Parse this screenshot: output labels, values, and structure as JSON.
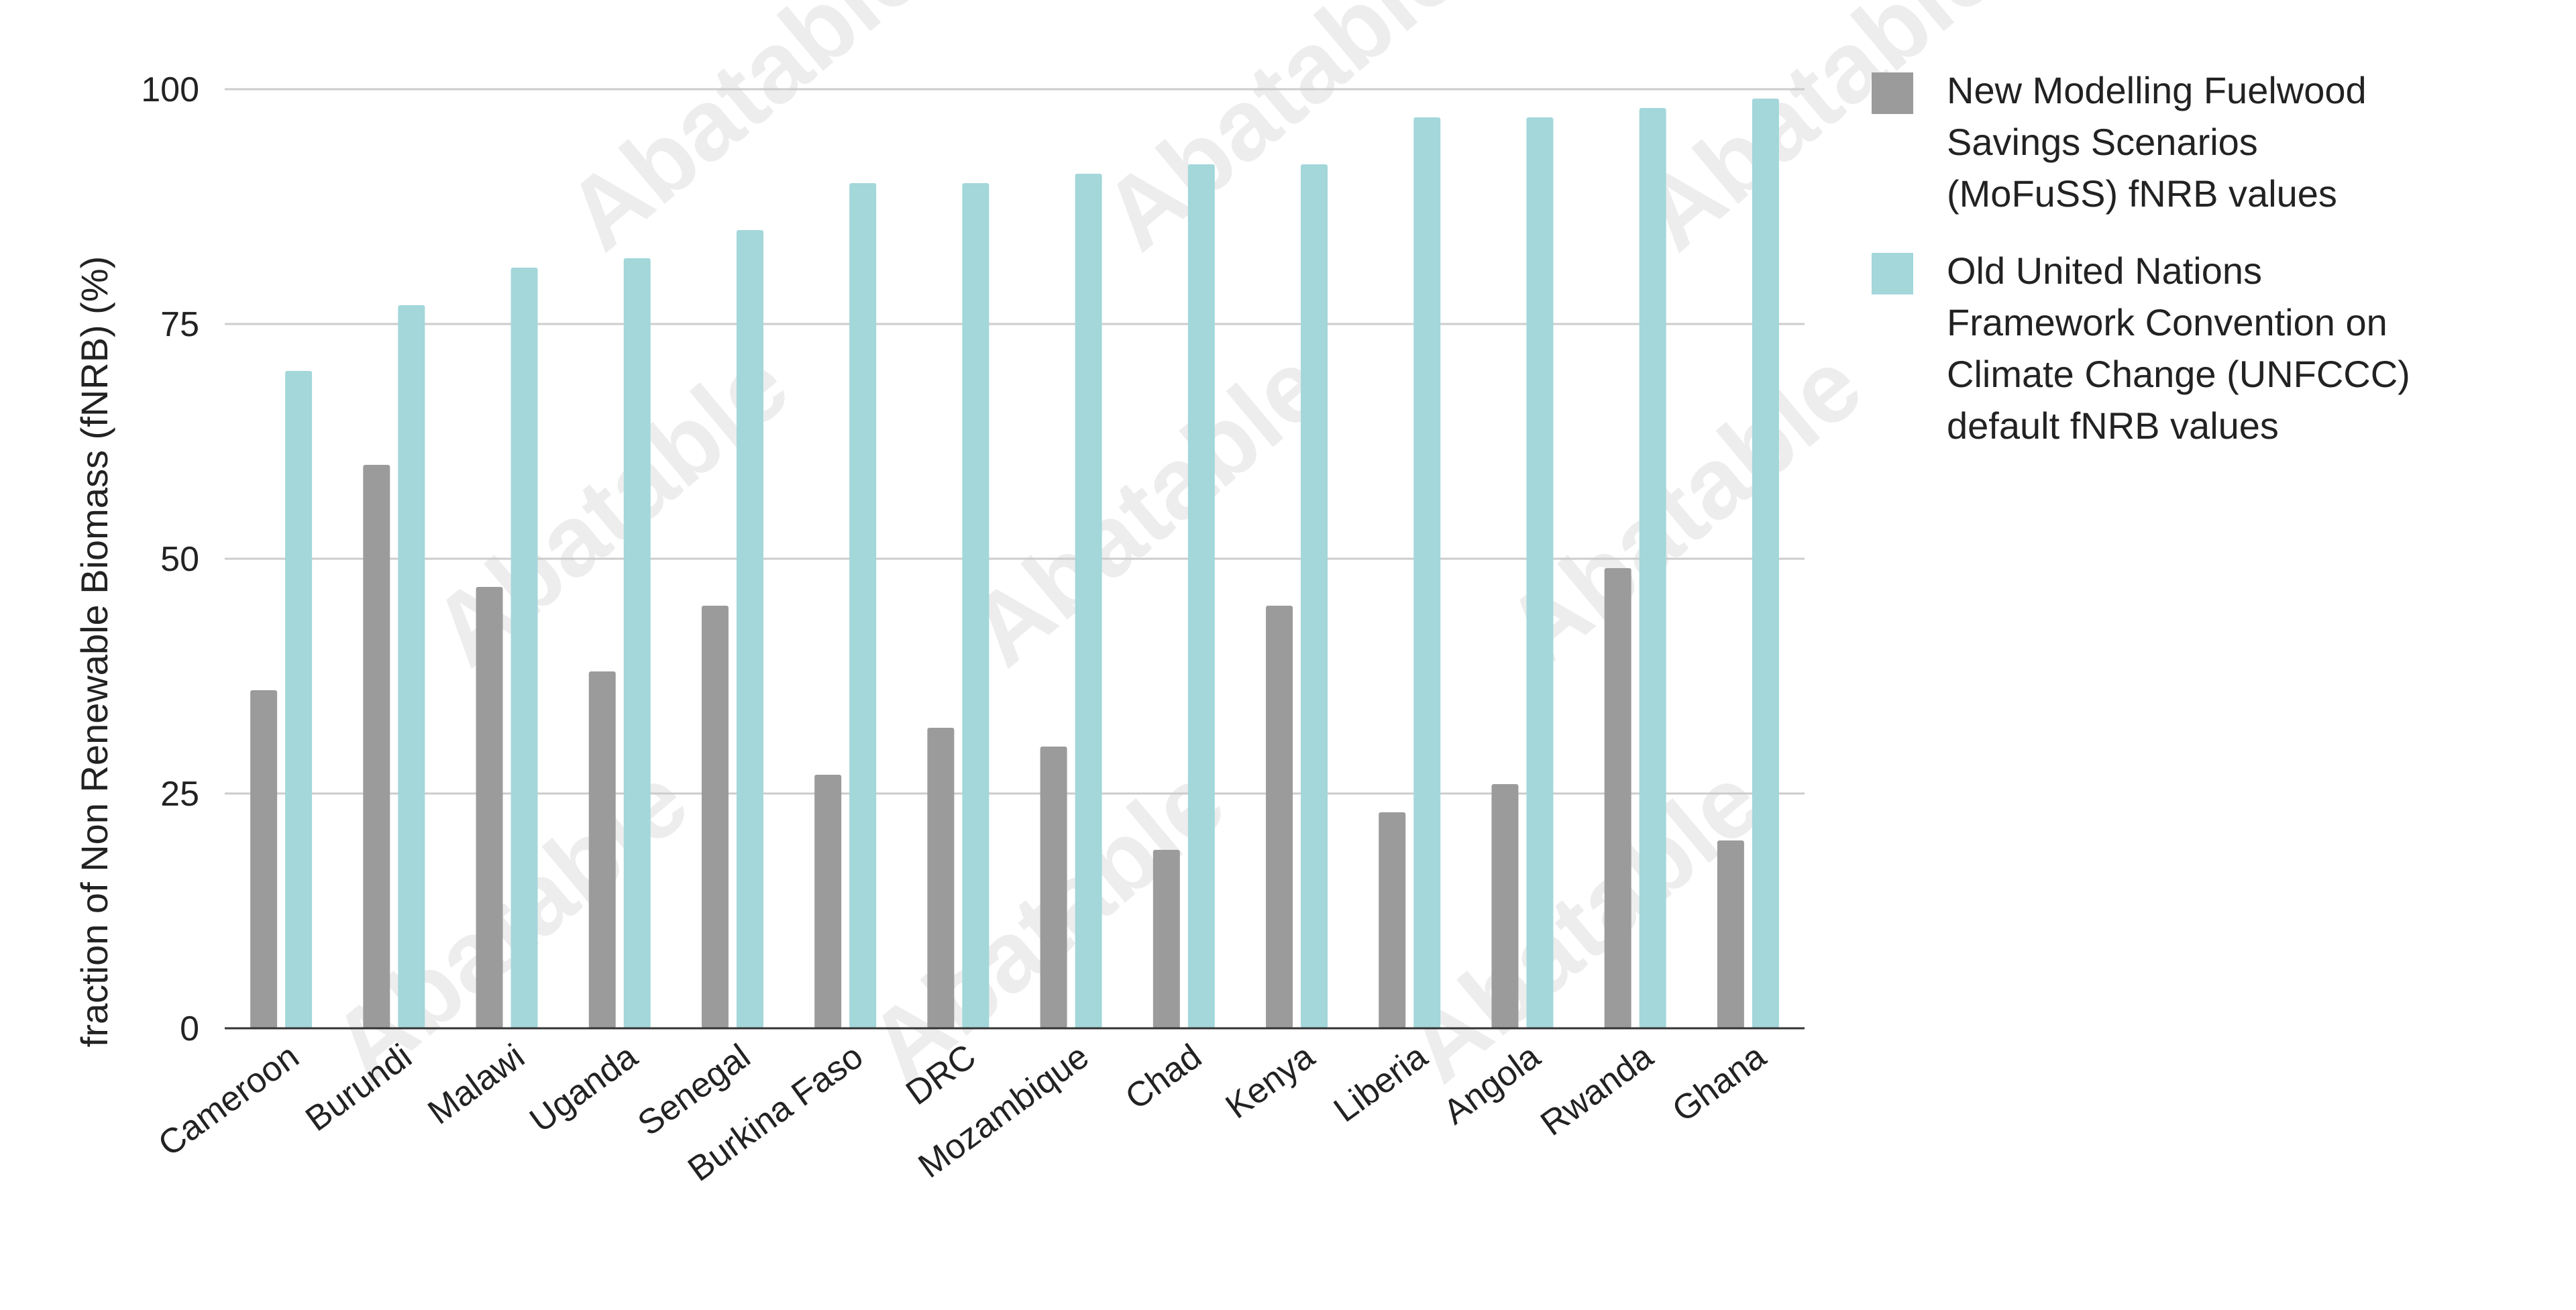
{
  "chart_data": {
    "type": "bar",
    "title": "",
    "xlabel": "",
    "ylabel": "fraction of Non Renewable Biomass (fNRB) (%)",
    "ylim": [
      0,
      100
    ],
    "yticks": [
      0,
      25,
      50,
      75,
      100
    ],
    "grid": true,
    "legend_position": "right",
    "categories": [
      "Cameroon",
      "Burundi",
      "Malawi",
      "Uganda",
      "Senegal",
      "Burkina Faso",
      "DRC",
      "Mozambique",
      "Chad",
      "Kenya",
      "Liberia",
      "Angola",
      "Rwanda",
      "Ghana"
    ],
    "series": [
      {
        "name": "New Modelling Fuelwood Savings Scenarios (MoFuSS) fNRB values",
        "color": "#9b9b9b",
        "values": [
          36,
          60,
          47,
          38,
          45,
          27,
          32,
          30,
          19,
          45,
          23,
          26,
          49,
          20
        ]
      },
      {
        "name": "Old United Nations Framework Convention on Climate Change (UNFCCC) default fNRB values",
        "color": "#a3d7da",
        "values": [
          70,
          77,
          81,
          82,
          85,
          90,
          90,
          91,
          92,
          92,
          97,
          97,
          98,
          99
        ]
      }
    ]
  },
  "legend": {
    "items": [
      {
        "label": "New Modelling Fuelwood\nSavings Scenarios\n(MoFuSS) fNRB values",
        "color": "#9b9b9b"
      },
      {
        "label": "Old United Nations\nFramework Convention on\nClimate Change (UNFCCC)\ndefault fNRB values",
        "color": "#a3d7da"
      }
    ]
  },
  "watermark": {
    "text": "Abatable"
  }
}
